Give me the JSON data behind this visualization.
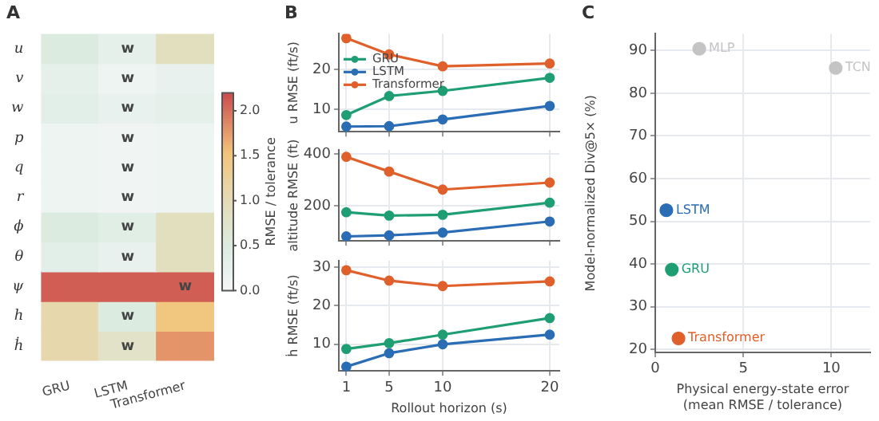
{
  "chart_data": [
    {
      "type": "heatmap",
      "title": "A",
      "categories": [
        "GRU",
        "LSTM",
        "Transformer"
      ],
      "y_categories": [
        "u",
        "v",
        "w",
        "p",
        "q",
        "r",
        "ϕ",
        "θ",
        "ψ",
        "h",
        "ḣ"
      ],
      "cells": [
        [
          0.5,
          0.3,
          0.9
        ],
        [
          0.3,
          0.15,
          0.25
        ],
        [
          0.35,
          0.25,
          0.3
        ],
        [
          0.15,
          0.1,
          0.15
        ],
        [
          0.15,
          0.1,
          0.15
        ],
        [
          0.15,
          0.1,
          0.15
        ],
        [
          0.5,
          0.4,
          0.9
        ],
        [
          0.35,
          0.25,
          0.9
        ],
        [
          2.1,
          2.1,
          2.1
        ],
        [
          1.1,
          0.5,
          1.5
        ],
        [
          1.1,
          0.8,
          1.8
        ]
      ],
      "cell_labels": [
        [
          null,
          "w",
          null
        ],
        [
          null,
          "w",
          null
        ],
        [
          null,
          "w",
          null
        ],
        [
          null,
          "w",
          null
        ],
        [
          null,
          "w",
          null
        ],
        [
          null,
          "w",
          null
        ],
        [
          null,
          "w",
          null
        ],
        [
          null,
          "w",
          null
        ],
        [
          null,
          null,
          "w"
        ],
        [
          null,
          "w",
          null
        ],
        [
          null,
          "w",
          null
        ]
      ],
      "clim": [
        0,
        2.2
      ],
      "cticks": [
        {
          "value": 0,
          "label": "0.0"
        },
        {
          "value": 0.5,
          "label": "0.5"
        },
        {
          "value": 1,
          "label": "1.0"
        },
        {
          "value": 1.5,
          "label": "1.5"
        },
        {
          "value": 2,
          "label": "2.0"
        }
      ],
      "clabel": "RMSE / tolerance"
    },
    {
      "type": "line",
      "title": "B",
      "x": [
        1,
        5,
        10,
        20
      ],
      "xlim": [
        0.3,
        20.9
      ],
      "xticks": [
        1,
        5,
        10,
        20
      ],
      "ylabel": "u RMSE (ft/s)",
      "ylim": [
        4.3,
        29
      ],
      "yticks": [
        10,
        20
      ],
      "legend": "top left",
      "marker": "circle",
      "grid": true,
      "tick_labels": "y",
      "series": [
        {
          "name": "GRU",
          "color": "#1f9e74",
          "values": [
            8.5,
            13.3,
            14.6,
            17.9
          ]
        },
        {
          "name": "LSTM",
          "color": "#2a6db5",
          "values": [
            5.6,
            5.7,
            7.4,
            10.8
          ]
        },
        {
          "name": "Transformer",
          "color": "#e0602c",
          "values": [
            27.9,
            23.8,
            20.8,
            21.5
          ]
        }
      ]
    },
    {
      "type": "line",
      "x": [
        1,
        5,
        10,
        20
      ],
      "xlim": [
        0.3,
        20.9
      ],
      "xticks": [
        1,
        5,
        10,
        20
      ],
      "ylabel": "altitude RMSE (ft)",
      "ylim": [
        64,
        417
      ],
      "yticks": [
        200,
        400
      ],
      "marker": "circle",
      "grid": true,
      "tick_labels": "y",
      "series": [
        {
          "color": "#1f9e74",
          "values": [
            175,
            162,
            165,
            212
          ]
        },
        {
          "color": "#2a6db5",
          "values": [
            81,
            85,
            96,
            139
          ]
        },
        {
          "color": "#e0602c",
          "values": [
            390,
            333,
            263,
            290
          ]
        }
      ]
    },
    {
      "type": "line",
      "x": [
        1,
        5,
        10,
        20
      ],
      "xlim": [
        0.3,
        20.9
      ],
      "xticks": [
        1,
        5,
        10,
        20
      ],
      "xlabel": "Rollout horizon (s)",
      "ylabel": "ḣ RMSE (ft/s)",
      "ylim": [
        3.1,
        31.7
      ],
      "yticks": [
        10,
        20,
        30
      ],
      "marker": "circle",
      "grid": true,
      "series": [
        {
          "color": "#1f9e74",
          "values": [
            8.8,
            10.3,
            12.5,
            16.8
          ]
        },
        {
          "color": "#2a6db5",
          "values": [
            4.2,
            7.7,
            10,
            12.5
          ]
        },
        {
          "color": "#e0602c",
          "values": [
            29.2,
            26.5,
            25.1,
            26.3
          ]
        }
      ]
    },
    {
      "type": "scatter",
      "title": "C",
      "xlabel": "Physical energy-state error\n(mean RMSE / tolerance)",
      "ylabel": "Model-normalized Div@5× (%)",
      "xlim": [
        0,
        12.2
      ],
      "xticks": [
        0,
        5,
        10
      ],
      "ylim": [
        19.3,
        93.9
      ],
      "yticks": [
        20,
        30,
        40,
        50,
        60,
        70,
        80,
        90
      ],
      "grid": true,
      "marker": "circle",
      "series": [
        {
          "name": "MLP",
          "color": "#c4c4c4",
          "x": [
            2.5
          ],
          "values": [
            90.4
          ]
        },
        {
          "name": "TCN",
          "color": "#c4c4c4",
          "x": [
            10.25
          ],
          "values": [
            85.9
          ]
        },
        {
          "name": "LSTM",
          "color": "#2a6db5",
          "x": [
            0.63
          ],
          "values": [
            52.6
          ]
        },
        {
          "name": "GRU",
          "color": "#1f9e74",
          "x": [
            0.94
          ],
          "values": [
            38.7
          ]
        },
        {
          "name": "Transformer",
          "color": "#e0602c",
          "x": [
            1.32
          ],
          "values": [
            22.6
          ]
        }
      ]
    }
  ]
}
